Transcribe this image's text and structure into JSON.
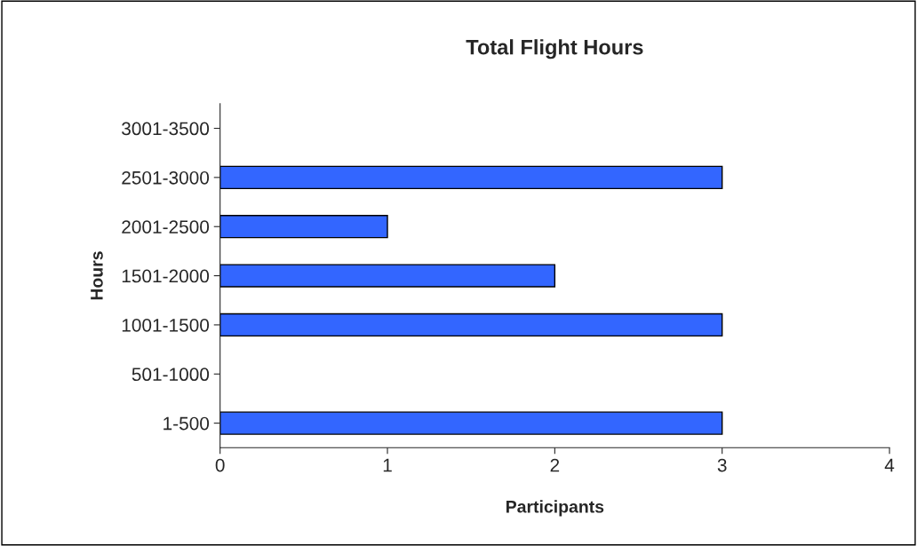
{
  "chart_data": {
    "type": "bar",
    "orientation": "horizontal",
    "title": "Total Flight Hours",
    "xlabel": "Participants",
    "ylabel": "Hours",
    "categories": [
      "3001-3500",
      "2501-3000",
      "2001-2500",
      "1501-2000",
      "1001-1500",
      "501-1000",
      "1-500"
    ],
    "values": [
      0,
      3,
      1,
      2,
      3,
      0,
      3
    ],
    "color": "#3366ff",
    "xlim": [
      0,
      4
    ],
    "xticks": [
      0,
      1,
      2,
      3,
      4
    ],
    "grid": false,
    "legend": false
  }
}
